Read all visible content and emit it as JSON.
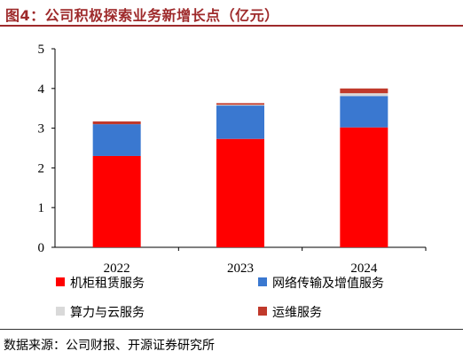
{
  "title": "图4：公司积极探索业务新增长点（亿元）",
  "source": "数据来源：公司财报、开源证券研究所",
  "chart_data": {
    "type": "bar",
    "stacked": true,
    "categories": [
      "2022",
      "2023",
      "2024"
    ],
    "series": [
      {
        "name": "机柜租赁服务",
        "color": "#ff0000",
        "values": [
          2.3,
          2.73,
          3.02
        ]
      },
      {
        "name": "网络传输及增值服务",
        "color": "#3a78d0",
        "values": [
          0.8,
          0.84,
          0.79
        ]
      },
      {
        "name": "算力与云服务",
        "color": "#d9d9d9",
        "values": [
          0.0,
          0.02,
          0.07
        ]
      },
      {
        "name": "运维服务",
        "color": "#c0392b",
        "values": [
          0.07,
          0.04,
          0.12
        ]
      }
    ],
    "ylim": [
      0,
      5
    ],
    "yticks": [
      "0",
      "1",
      "2",
      "3",
      "4",
      "5"
    ],
    "grid": false,
    "legend_position": "bottom"
  }
}
